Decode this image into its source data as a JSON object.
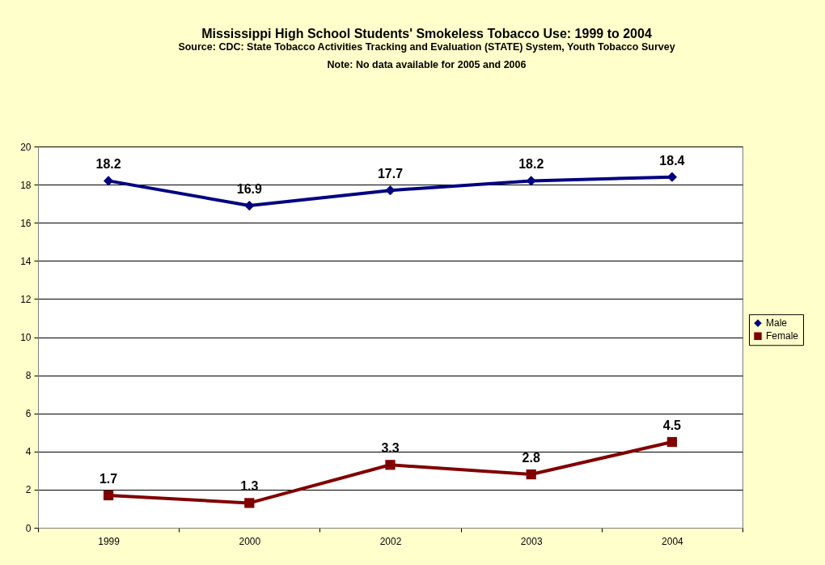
{
  "chart_data": {
    "type": "line",
    "title": "Mississippi High School Students' Smokeless Tobacco Use: 1999 to 2004",
    "annotations": [
      "Source: CDC: State Tobacco Activities Tracking and Evaluation (STATE) System, Youth Tobacco Survey",
      "Note: No data available for 2005 and 2006"
    ],
    "categories": [
      "1999",
      "2000",
      "2002",
      "2003",
      "2004"
    ],
    "series": [
      {
        "name": "Male",
        "color": "#000080",
        "marker": "diamond",
        "values": [
          18.2,
          16.9,
          17.7,
          18.2,
          18.4
        ]
      },
      {
        "name": "Female",
        "color": "#800000",
        "marker": "square",
        "values": [
          1.7,
          1.3,
          3.3,
          2.8,
          4.5
        ]
      }
    ],
    "ylim": [
      0,
      20
    ],
    "yticks": [
      0,
      2,
      4,
      6,
      8,
      10,
      12,
      14,
      16,
      18,
      20
    ],
    "grid": "y",
    "legend": "right",
    "data_labels": true,
    "line_style": "solid"
  }
}
